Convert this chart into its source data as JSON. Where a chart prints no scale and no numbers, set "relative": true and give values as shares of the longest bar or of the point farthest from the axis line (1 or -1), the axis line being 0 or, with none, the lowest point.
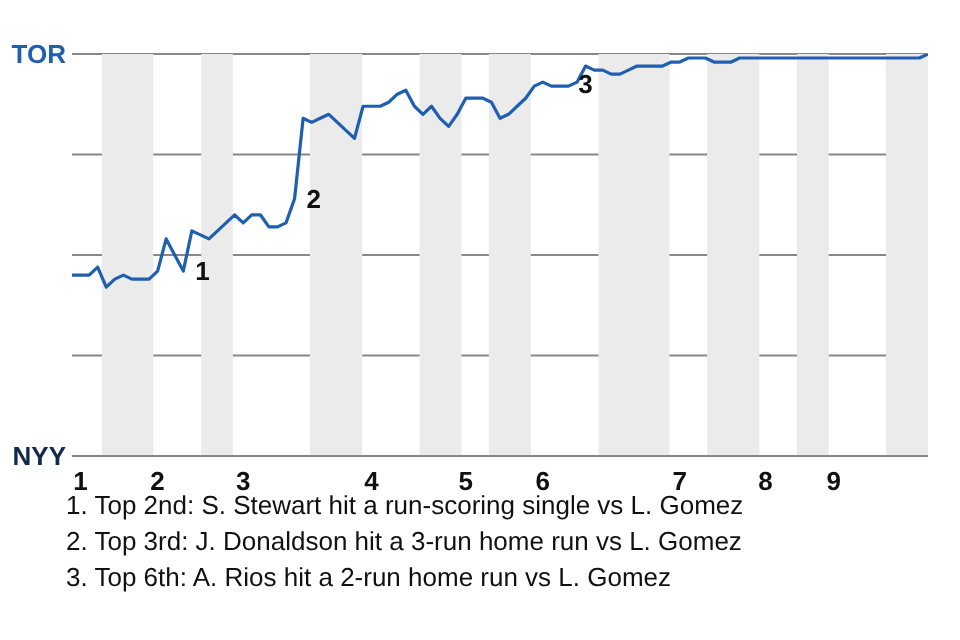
{
  "chart_data": {
    "type": "line",
    "relative": true,
    "categories": [
      null,
      "1",
      null,
      null,
      null,
      null,
      null,
      null,
      null,
      null,
      "2",
      null,
      null,
      null,
      null,
      null,
      null,
      null,
      null,
      null,
      "3",
      null,
      null,
      null,
      null,
      null,
      null,
      null,
      null,
      null,
      null,
      null,
      null,
      null,
      null,
      "4",
      null,
      null,
      null,
      null,
      null,
      null,
      null,
      null,
      null,
      null,
      "5",
      null,
      null,
      null,
      null,
      null,
      null,
      null,
      null,
      "6",
      null,
      null,
      null,
      null,
      null,
      null,
      null,
      null,
      null,
      null,
      null,
      null,
      null,
      null,
      null,
      "7",
      null,
      null,
      null,
      null,
      null,
      null,
      null,
      null,
      null,
      "8",
      null,
      null,
      null,
      null,
      null,
      null,
      null,
      "9",
      null,
      null,
      null,
      null,
      null,
      null,
      null,
      null,
      null,
      null,
      null
    ],
    "series": [
      {
        "color": "#1f5fb0",
        "values": [
          0.45,
          0.45,
          0.45,
          0.47,
          0.42,
          0.44,
          0.45,
          0.44,
          0.44,
          0.44,
          0.46,
          0.54,
          0.5,
          0.46,
          0.56,
          0.55,
          0.54,
          0.56,
          0.58,
          0.6,
          0.58,
          0.6,
          0.6,
          0.57,
          0.57,
          0.58,
          0.64,
          0.84,
          0.83,
          0.84,
          0.85,
          0.83,
          0.81,
          0.79,
          0.87,
          0.87,
          0.87,
          0.88,
          0.9,
          0.91,
          0.87,
          0.85,
          0.87,
          0.84,
          0.82,
          0.85,
          0.89,
          0.89,
          0.89,
          0.88,
          0.84,
          0.85,
          0.87,
          0.89,
          0.92,
          0.93,
          0.92,
          0.92,
          0.92,
          0.93,
          0.97,
          0.96,
          0.96,
          0.95,
          0.95,
          0.96,
          0.97,
          0.97,
          0.97,
          0.97,
          0.98,
          0.98,
          0.99,
          0.99,
          0.99,
          0.98,
          0.98,
          0.98,
          0.99,
          0.99,
          0.99,
          0.99,
          0.99,
          0.99,
          0.99,
          0.99,
          0.99,
          0.99,
          0.99,
          0.99,
          0.99,
          0.99,
          0.99,
          0.99,
          0.99,
          0.99,
          0.99,
          0.99,
          0.99,
          0.99,
          1
        ]
      }
    ],
    "grid": "y",
    "marker": "none",
    "annotations": [
      "TOR",
      "NYY",
      "1",
      "2",
      "3",
      "1. Top 2nd: S. Stewart hit a run-scoring single vs L. Gomez",
      "2. Top 3rd: J. Donaldson hit a 3-run home run vs L. Gomez",
      "3. Top 6th: A. Rios hit a 2-run home run vs L. Gomez"
    ]
  }
}
